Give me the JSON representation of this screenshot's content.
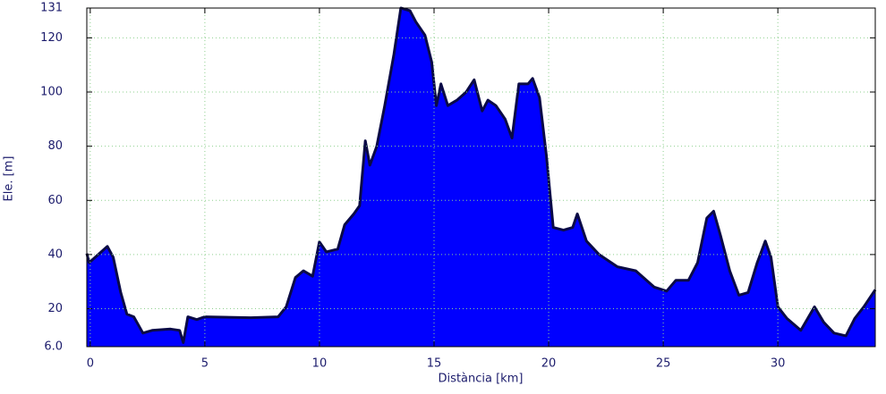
{
  "chart_data": {
    "type": "area",
    "x_label": "Distància [km]",
    "y_label": "Ele. [m]",
    "color": "#0000ff",
    "grid": true,
    "x": [
      -0.15,
      -0.05,
      0.35,
      0.75,
      1.0,
      1.33,
      1.6,
      1.9,
      2.1,
      2.3,
      2.7,
      3.5,
      3.9,
      4.06,
      4.26,
      4.65,
      5.0,
      7.0,
      8.2,
      8.55,
      8.95,
      9.3,
      9.7,
      10.0,
      10.3,
      10.8,
      11.1,
      11.5,
      11.75,
      12.0,
      12.2,
      12.5,
      12.85,
      13.25,
      13.55,
      13.95,
      14.2,
      14.6,
      14.9,
      15.1,
      15.3,
      15.6,
      16.0,
      16.4,
      16.75,
      17.1,
      17.35,
      17.7,
      18.1,
      18.4,
      18.7,
      19.1,
      19.3,
      19.6,
      19.9,
      20.2,
      20.65,
      21.05,
      21.25,
      21.65,
      22.2,
      23.0,
      23.8,
      24.6,
      25.15,
      25.55,
      26.1,
      26.5,
      26.9,
      27.2,
      27.5,
      27.9,
      28.3,
      28.7,
      29.1,
      29.45,
      29.7,
      30.0,
      30.4,
      31.0,
      31.6,
      32.0,
      32.45,
      32.97,
      33.35,
      33.75,
      34.25
    ],
    "values": [
      40.4,
      37,
      40,
      43,
      39,
      26,
      18,
      17,
      14,
      11,
      12,
      12.5,
      12,
      7.5,
      17,
      16,
      17,
      16.7,
      17,
      20.7,
      31.5,
      34,
      32,
      44.7,
      41,
      42,
      51,
      55,
      58,
      82,
      73,
      80,
      95,
      114,
      131,
      130,
      126,
      121,
      111,
      95,
      103,
      95,
      97,
      100,
      104.5,
      93,
      97,
      95,
      90,
      83,
      103,
      103,
      105,
      98,
      76.6,
      50,
      49,
      50,
      55,
      45,
      40,
      35.5,
      34,
      28,
      26.5,
      30.5,
      30.5,
      37,
      53.5,
      56,
      47,
      34,
      25,
      26,
      37,
      45,
      39,
      20.7,
      16.4,
      12,
      20.7,
      15,
      11,
      10,
      16.4,
      20.7,
      27
    ],
    "xlim": [
      -0.15,
      34.25
    ],
    "ylim": [
      6,
      131
    ],
    "xticks": [
      0,
      5,
      10,
      15,
      20,
      25,
      30
    ],
    "yticks": [
      {
        "value": 6,
        "label": "6.0"
      },
      20,
      40,
      60,
      80,
      100,
      120,
      131
    ]
  }
}
